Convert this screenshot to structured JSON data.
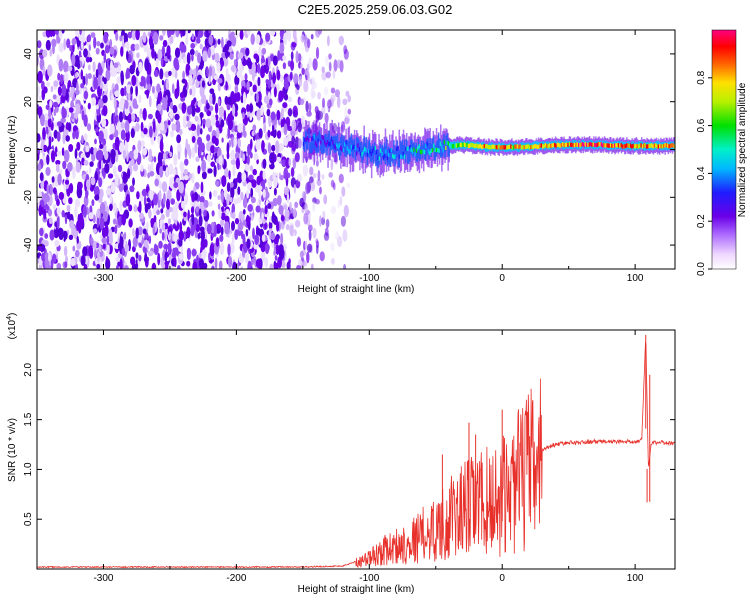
{
  "title": "C2E5.2025.259.06.03.G02",
  "chart_data": [
    {
      "type": "heatmap",
      "xlabel": "Height of straight line (km)",
      "ylabel": "Frequency (Hz)",
      "xlim": [
        -350,
        130
      ],
      "ylim": [
        -50,
        50
      ],
      "xticks": [
        -300,
        -200,
        -100,
        0,
        100
      ],
      "yticks": [
        -40,
        -20,
        0,
        20,
        40
      ],
      "colorbar": {
        "label": "Normalized spectral amplitude",
        "range": [
          0.0,
          1.0
        ],
        "ticks": [
          0.0,
          0.2,
          0.4,
          0.6,
          0.8
        ],
        "colormap": "rainbow (white-violet-blue-cyan-green-yellow-red-pink)"
      },
      "noise_region_x": [
        -350,
        -130
      ],
      "signal_track": {
        "x": [
          -150,
          -130,
          -110,
          -90,
          -70,
          -50,
          -30,
          -10,
          10,
          30,
          50,
          70,
          90,
          110,
          130
        ],
        "frequency": [
          4,
          3,
          0,
          -2,
          -1,
          1,
          2,
          1,
          1,
          1.5,
          2,
          2,
          1.5,
          1.5,
          1.5
        ],
        "amplitude": [
          0.3,
          0.35,
          0.4,
          0.45,
          0.5,
          0.55,
          0.7,
          0.85,
          0.8,
          0.85,
          0.9,
          0.95,
          0.9,
          0.85,
          0.9
        ]
      },
      "grid": false,
      "legend": "colorbar-right"
    },
    {
      "type": "line",
      "xlabel": "Height of straight line (km)",
      "ylabel": "SNR (10 * v/v)",
      "y_multiplier": "(x10^4)",
      "y_multiplier_base": "(x10",
      "y_multiplier_exp": "4",
      "y_multiplier_close": ")",
      "xlim": [
        -350,
        130
      ],
      "ylim": [
        0,
        2.4
      ],
      "xticks": [
        -300,
        -200,
        -100,
        0,
        100
      ],
      "yticks": [
        0.5,
        1.0,
        1.5,
        2.0
      ],
      "color": "#e8302a",
      "series": [
        {
          "x": [
            -350,
            -300,
            -250,
            -200,
            -150,
            -120,
            -100,
            -90,
            -80,
            -70,
            -60,
            -50,
            -40,
            -30,
            -20,
            -10,
            0,
            10,
            20,
            30,
            40,
            50,
            60,
            70,
            80,
            90,
            100,
            105,
            108,
            110,
            112,
            115,
            120,
            130
          ],
          "y": [
            0.02,
            0.02,
            0.02,
            0.02,
            0.02,
            0.03,
            0.12,
            0.2,
            0.25,
            0.3,
            0.38,
            0.45,
            0.55,
            0.65,
            0.72,
            0.75,
            0.8,
            0.95,
            1.1,
            1.2,
            1.25,
            1.27,
            1.27,
            1.28,
            1.28,
            1.28,
            1.28,
            1.3,
            2.35,
            1.0,
            1.25,
            1.27,
            1.27,
            1.26
          ]
        }
      ],
      "spikes": [
        {
          "x": 0,
          "y": 1.6
        },
        {
          "x": -25,
          "y": 1.47
        },
        {
          "x": -20,
          "y": 1.35
        },
        {
          "x": -45,
          "y": 1.15
        },
        {
          "x": 108,
          "y": 2.35
        },
        {
          "x": 109,
          "y": 0.67
        },
        {
          "x": 111,
          "y": 1.95
        }
      ],
      "grid": false
    }
  ]
}
